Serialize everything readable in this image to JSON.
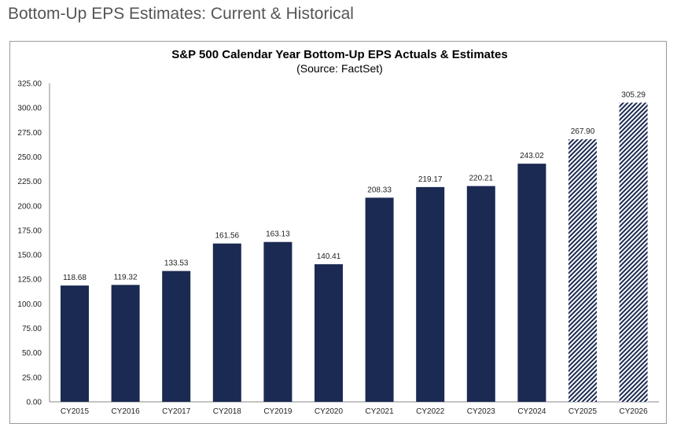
{
  "page": {
    "heading": "Bottom-Up EPS Estimates: Current & Historical"
  },
  "chart_data": {
    "type": "bar",
    "title": "S&P 500 Calendar Year Bottom-Up EPS Actuals & Estimates",
    "subtitle": "(Source: FactSet)",
    "categories": [
      "CY2015",
      "CY2016",
      "CY2017",
      "CY2018",
      "CY2019",
      "CY2020",
      "CY2021",
      "CY2022",
      "CY2023",
      "CY2024",
      "CY2025",
      "CY2026"
    ],
    "values": [
      118.68,
      119.32,
      133.53,
      161.56,
      163.13,
      140.41,
      208.33,
      219.17,
      220.21,
      243.02,
      267.9,
      305.29
    ],
    "data_labels": [
      "118.68",
      "119.32",
      "133.53",
      "161.56",
      "163.13",
      "140.41",
      "208.33",
      "219.17",
      "220.21",
      "243.02",
      "267.90",
      "305.29"
    ],
    "estimate": [
      false,
      false,
      false,
      false,
      false,
      false,
      false,
      false,
      false,
      false,
      true,
      true
    ],
    "yticks": [
      "0.00",
      "25.00",
      "50.00",
      "75.00",
      "100.00",
      "125.00",
      "150.00",
      "175.00",
      "200.00",
      "225.00",
      "250.00",
      "275.00",
      "300.00",
      "325.00"
    ],
    "ylim": [
      0,
      325
    ],
    "grid": false,
    "colors": {
      "bar": "#1b2a52",
      "hatch_bg": "#ffffff"
    }
  }
}
